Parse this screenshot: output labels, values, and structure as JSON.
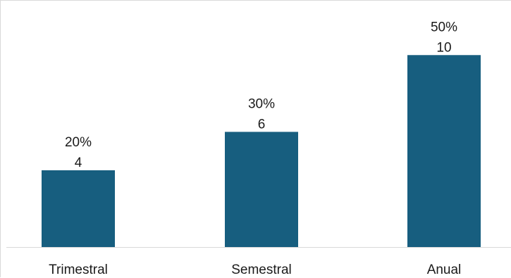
{
  "chart_data": {
    "type": "bar",
    "categories": [
      "Trimestral",
      "Semestral",
      "Anual"
    ],
    "values": [
      4,
      6,
      10
    ],
    "percent_labels": [
      "20%",
      "30%",
      "50%"
    ],
    "ylim": [
      0,
      12.1
    ],
    "grid": false,
    "legend": "none",
    "bar_color": "#175e7f"
  }
}
